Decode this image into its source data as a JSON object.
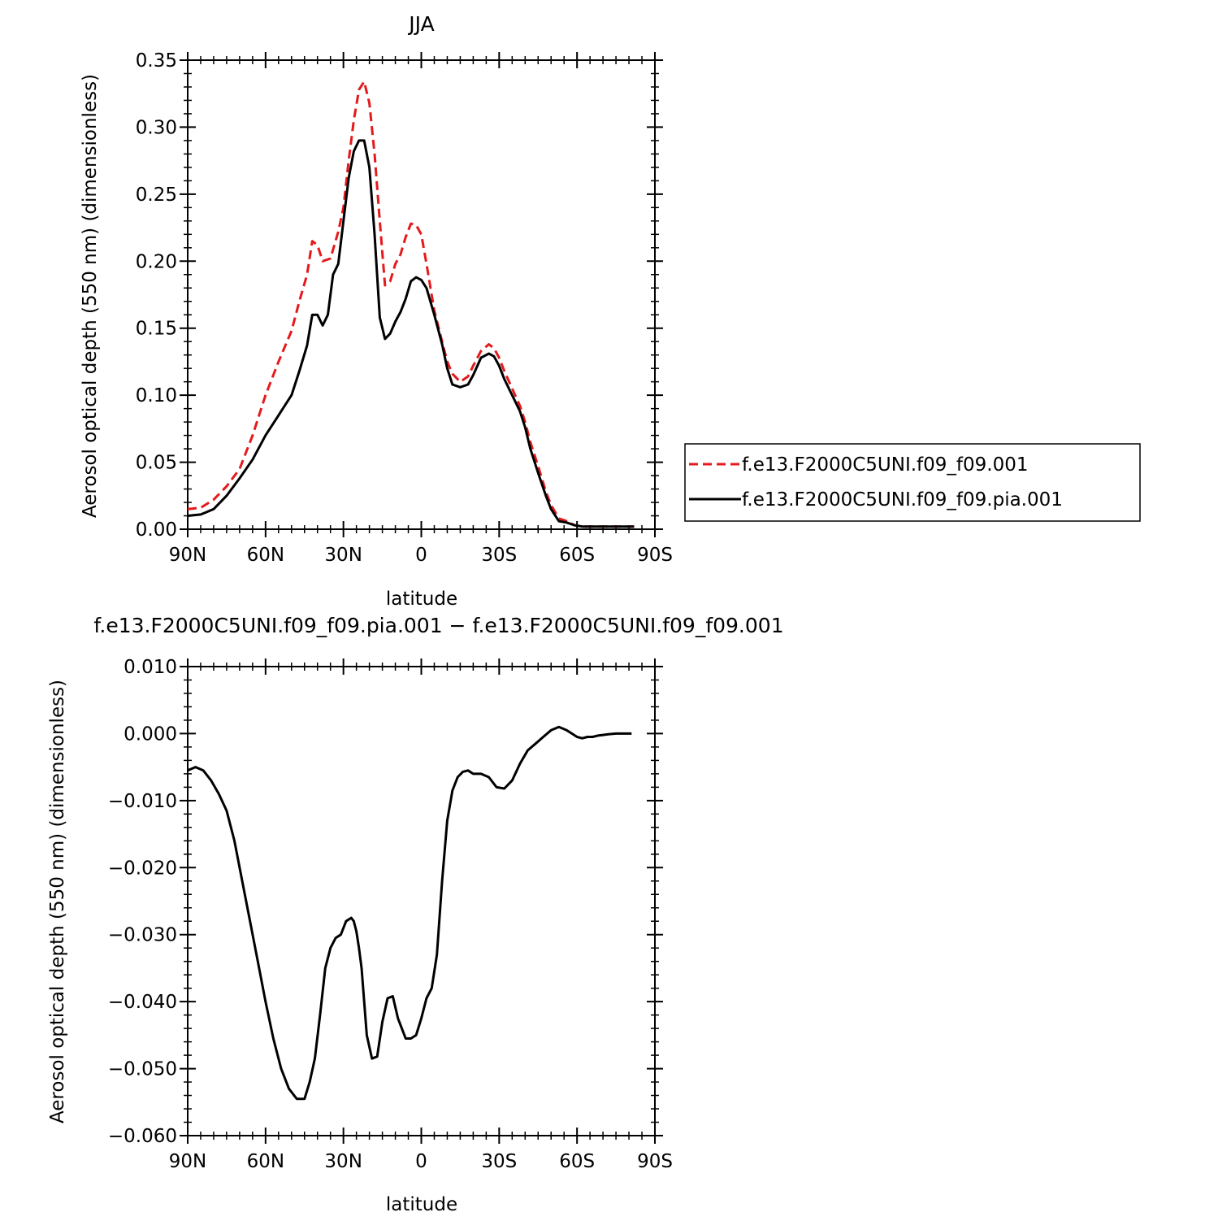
{
  "chart_data": [
    {
      "type": "line",
      "title": "JJA",
      "xlabel": "latitude",
      "ylabel": "Aerosol optical depth (550 nm) (dimensionless)",
      "xlim": [
        90,
        -90
      ],
      "ylim": [
        0,
        0.35
      ],
      "x_ticks": [
        90,
        60,
        30,
        0,
        -30,
        -60,
        -90
      ],
      "x_tick_labels": [
        "90N",
        "60N",
        "30N",
        "0",
        "30S",
        "60S",
        "90S"
      ],
      "y_ticks": [
        0,
        0.05,
        0.1,
        0.15,
        0.2,
        0.25,
        0.3,
        0.35
      ],
      "y_tick_labels": [
        "0.00",
        "0.05",
        "0.10",
        "0.15",
        "0.20",
        "0.25",
        "0.30",
        "0.35"
      ],
      "grid": false,
      "legend": "right",
      "series": [
        {
          "name": "f.e13.F2000C5UNI.f09_f09.001",
          "color": "#e41a1c",
          "dash": "dashed",
          "x": [
            90,
            85,
            80,
            75,
            70,
            65,
            60,
            55,
            50,
            47,
            44,
            42,
            40,
            38,
            35,
            32,
            30,
            28,
            26,
            24,
            22,
            20,
            18,
            16,
            14,
            12,
            10,
            8,
            6,
            4,
            2,
            0,
            -2,
            -5,
            -8,
            -10,
            -12,
            -15,
            -18,
            -20,
            -23,
            -26,
            -28,
            -30,
            -32,
            -35,
            -38,
            -40,
            -42,
            -45,
            -48,
            -50,
            -53,
            -56,
            -59,
            -62,
            -64,
            -66,
            -68,
            -70,
            -72,
            -74,
            -76,
            -78,
            -80,
            -82
          ],
          "y": [
            0.015,
            0.016,
            0.022,
            0.032,
            0.045,
            0.07,
            0.1,
            0.125,
            0.148,
            0.17,
            0.19,
            0.215,
            0.212,
            0.2,
            0.202,
            0.222,
            0.24,
            0.275,
            0.305,
            0.328,
            0.334,
            0.318,
            0.28,
            0.23,
            0.182,
            0.185,
            0.198,
            0.205,
            0.218,
            0.228,
            0.227,
            0.22,
            0.198,
            0.163,
            0.14,
            0.125,
            0.116,
            0.11,
            0.114,
            0.122,
            0.133,
            0.138,
            0.135,
            0.128,
            0.118,
            0.105,
            0.092,
            0.08,
            0.065,
            0.047,
            0.028,
            0.018,
            0.008,
            0.006,
            0.003,
            0.002,
            0.002,
            0.002,
            0.002,
            0.002,
            0.002,
            0.002,
            0.002,
            0.002,
            0.002,
            0.002
          ]
        },
        {
          "name": "f.e13.F2000C5UNI.f09_f09.pia.001",
          "color": "#000000",
          "dash": "solid",
          "x": [
            90,
            85,
            80,
            75,
            70,
            65,
            60,
            55,
            50,
            47,
            44,
            42,
            40,
            38,
            36,
            34,
            32,
            30,
            28,
            26,
            24,
            22,
            20,
            18,
            16,
            14,
            12,
            10,
            8,
            6,
            4,
            2,
            0,
            -2,
            -5,
            -8,
            -10,
            -12,
            -15,
            -18,
            -20,
            -23,
            -26,
            -28,
            -30,
            -32,
            -35,
            -38,
            -40,
            -42,
            -45,
            -48,
            -50,
            -53,
            -56,
            -59,
            -62,
            -64,
            -66,
            -68,
            -70,
            -72,
            -74,
            -76,
            -78,
            -80,
            -82
          ],
          "y": [
            0.01,
            0.011,
            0.015,
            0.025,
            0.038,
            0.052,
            0.07,
            0.085,
            0.1,
            0.118,
            0.137,
            0.16,
            0.16,
            0.152,
            0.16,
            0.19,
            0.198,
            0.23,
            0.262,
            0.282,
            0.29,
            0.29,
            0.27,
            0.22,
            0.158,
            0.142,
            0.146,
            0.155,
            0.162,
            0.172,
            0.185,
            0.188,
            0.186,
            0.18,
            0.16,
            0.138,
            0.12,
            0.108,
            0.106,
            0.108,
            0.115,
            0.128,
            0.131,
            0.129,
            0.122,
            0.112,
            0.1,
            0.088,
            0.076,
            0.06,
            0.042,
            0.025,
            0.015,
            0.006,
            0.005,
            0.003,
            0.002,
            0.002,
            0.002,
            0.002,
            0.002,
            0.002,
            0.002,
            0.002,
            0.002,
            0.002,
            0.002
          ]
        }
      ]
    },
    {
      "type": "line",
      "title": "f.e13.F2000C5UNI.f09_f09.pia.001 − f.e13.F2000C5UNI.f09_f09.001",
      "xlabel": "latitude",
      "ylabel": "Aerosol optical depth (550 nm) (dimensionless)",
      "xlim": [
        90,
        -90
      ],
      "ylim": [
        -0.06,
        0.01
      ],
      "x_ticks": [
        90,
        60,
        30,
        0,
        -30,
        -60,
        -90
      ],
      "x_tick_labels": [
        "90N",
        "60N",
        "30N",
        "0",
        "30S",
        "60S",
        "90S"
      ],
      "y_ticks": [
        -0.06,
        -0.05,
        -0.04,
        -0.03,
        -0.02,
        -0.01,
        0.0,
        0.01
      ],
      "y_tick_labels": [
        "−0.060",
        "−0.050",
        "−0.040",
        "−0.030",
        "−0.020",
        "−0.010",
        "0.000",
        "0.010"
      ],
      "grid": false,
      "series": [
        {
          "color": "#000000",
          "dash": "solid",
          "x": [
            90,
            87,
            84,
            81,
            78,
            75,
            72,
            69,
            66,
            63,
            60,
            57,
            54,
            51,
            48,
            45,
            43,
            41,
            39,
            37,
            35,
            33,
            31,
            29,
            27,
            26,
            25,
            24,
            23,
            21,
            19,
            17,
            15,
            13,
            11,
            9,
            7,
            6,
            5,
            4,
            2,
            0,
            -2,
            -4,
            -6,
            -8,
            -10,
            -12,
            -14,
            -16,
            -18,
            -20,
            -23,
            -26,
            -29,
            -32,
            -35,
            -38,
            -41,
            -44,
            -47,
            -50,
            -53,
            -56,
            -58,
            -60,
            -62,
            -64,
            -66,
            -68,
            -70,
            -72,
            -75,
            -78,
            -81
          ],
          "y": [
            -0.0055,
            -0.005,
            -0.0055,
            -0.007,
            -0.009,
            -0.0115,
            -0.016,
            -0.022,
            -0.028,
            -0.034,
            -0.04,
            -0.0455,
            -0.05,
            -0.053,
            -0.0545,
            -0.0545,
            -0.052,
            -0.0485,
            -0.042,
            -0.035,
            -0.032,
            -0.0305,
            -0.03,
            -0.028,
            -0.0275,
            -0.028,
            -0.0295,
            -0.032,
            -0.035,
            -0.045,
            -0.0485,
            -0.0482,
            -0.043,
            -0.0395,
            -0.0392,
            -0.0425,
            -0.0445,
            -0.0455,
            -0.0455,
            -0.0455,
            -0.045,
            -0.0425,
            -0.0395,
            -0.038,
            -0.033,
            -0.022,
            -0.013,
            -0.0085,
            -0.0065,
            -0.0057,
            -0.0055,
            -0.006,
            -0.006,
            -0.0065,
            -0.008,
            -0.0082,
            -0.007,
            -0.0045,
            -0.0025,
            -0.0015,
            -0.0005,
            0.0005,
            0.001,
            0.0005,
            0.0,
            -0.0005,
            -0.0007,
            -0.0005,
            -0.0005,
            -0.0003,
            -0.0002,
            -0.0001,
            0.0,
            0.0,
            0.0
          ]
        }
      ]
    }
  ]
}
